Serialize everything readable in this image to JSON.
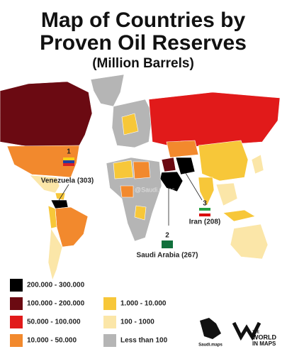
{
  "header": {
    "title_lines": [
      "Map of Countries by",
      "Proven Oil Reserves"
    ],
    "subtitle": "(Million Barrels)"
  },
  "callouts": [
    {
      "rank": "1",
      "label": "Venezuela (303)"
    },
    {
      "rank": "2",
      "label": "Saudi Arabia (267)"
    },
    {
      "rank": "3",
      "label": "Iran (208)"
    }
  ],
  "legend": [
    {
      "label": "200.000 - 300.000",
      "color": "#000000"
    },
    {
      "label": "100.000 - 200.000",
      "color": "#6b0a12"
    },
    {
      "label": "50.000 - 100.000",
      "color": "#e11a1a"
    },
    {
      "label": "10.000 - 50.000",
      "color": "#f2892d"
    },
    {
      "label": "1.000 - 10.000",
      "color": "#f7c739"
    },
    {
      "label": "100 - 1000",
      "color": "#fbe6a8"
    },
    {
      "label": "Less than 100",
      "color": "#b5b5b5"
    }
  ],
  "logos": {
    "left": "Saudi.maps",
    "right_lines": [
      "THE",
      "WORLD",
      "IN MAPS"
    ]
  }
}
